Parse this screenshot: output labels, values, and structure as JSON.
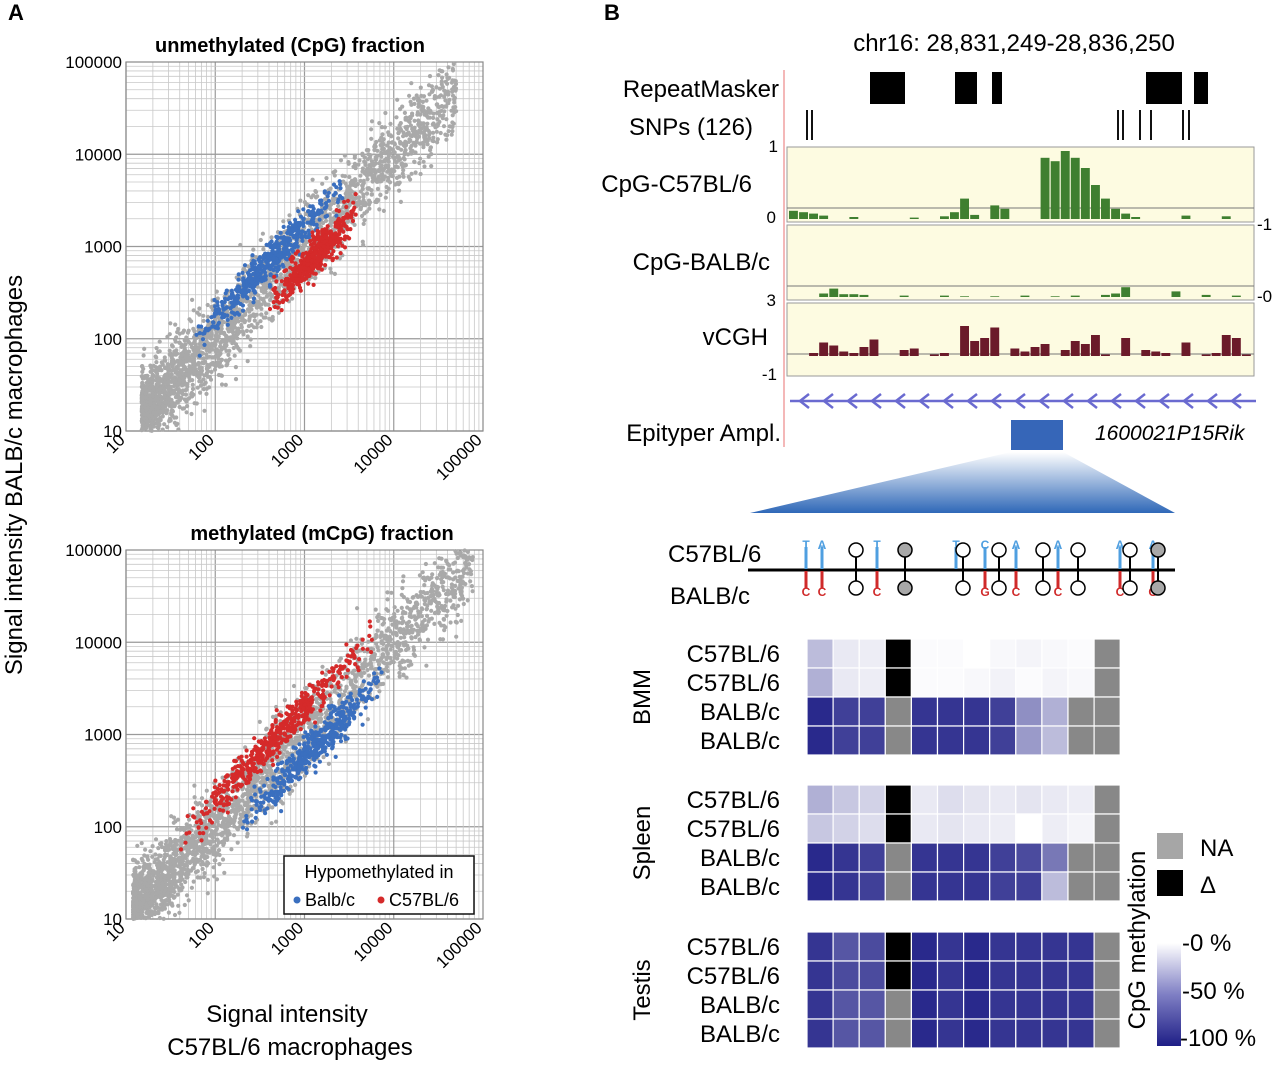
{
  "panel_a": {
    "letter": "A",
    "ylabel": "Signal intensity BALB/c macrophages",
    "xlabel_line1": "Signal intensity",
    "xlabel_line2": "C57BL/6 macrophages",
    "legend": {
      "title": "Hypomethylated in",
      "items": [
        {
          "label": "Balb/c",
          "color": "#3a6fbf"
        },
        {
          "label": "C57BL/6",
          "color": "#d52a2a"
        }
      ]
    },
    "colors": {
      "background": "#a9a9a9",
      "balbc": "#3a6fbf",
      "c57": "#d52a2a"
    }
  },
  "chart_data": [
    {
      "type": "scatter",
      "title": "unmethylated (CpG) fraction",
      "xscale": "log",
      "yscale": "log",
      "xlim": [
        10,
        100000
      ],
      "ylim": [
        10,
        100000
      ],
      "xticks": [
        "10",
        "100",
        "1000",
        "10000",
        "100000"
      ],
      "yticks": [
        "10",
        "100",
        "1000",
        "10000",
        "100000"
      ],
      "grid": true,
      "series": [
        {
          "name": "background",
          "color": "#a9a9a9",
          "center_offset": 0.0,
          "x_range": [
            15,
            50000
          ],
          "spread": 0.22
        },
        {
          "name": "Balb/c",
          "color": "#3a6fbf",
          "center_offset": 0.22,
          "x_range": [
            60,
            3000
          ],
          "spread": 0.1
        },
        {
          "name": "C57BL/6",
          "color": "#d52a2a",
          "center_offset": -0.22,
          "x_range": [
            400,
            4000
          ],
          "spread": 0.1
        }
      ]
    },
    {
      "type": "scatter",
      "title": "methylated (mCpG) fraction",
      "xscale": "log",
      "yscale": "log",
      "xlim": [
        10,
        100000
      ],
      "ylim": [
        10,
        100000
      ],
      "xticks": [
        "10",
        "100",
        "1000",
        "10000",
        "100000"
      ],
      "yticks": [
        "10",
        "100",
        "1000",
        "10000",
        "100000"
      ],
      "grid": true,
      "series": [
        {
          "name": "background",
          "color": "#a9a9a9",
          "center_offset": 0.0,
          "x_range": [
            12,
            80000
          ],
          "spread": 0.22
        },
        {
          "name": "Balb/c",
          "color": "#3a6fbf",
          "center_offset": -0.25,
          "x_range": [
            200,
            8000
          ],
          "spread": 0.1
        },
        {
          "name": "C57BL/6",
          "color": "#d52a2a",
          "center_offset": 0.28,
          "x_range": [
            40,
            6000
          ],
          "spread": 0.1
        }
      ]
    }
  ],
  "panel_b": {
    "letter": "B",
    "locus": "chr16: 28,831,249-28,836,250",
    "tracks": {
      "repeatmasker": "RepeatMasker",
      "snps": "SNPs (126)",
      "cpg_c57": "CpG-C57BL/6",
      "cpg_balbc": "CpG-BALB/c",
      "vcgh": "vCGH",
      "epityper": "Epityper Ampl.",
      "gene": "1600021P15Rik"
    },
    "axis_ticks": {
      "c57_top": "1",
      "c57_bottom": "0",
      "right_c57": "-1",
      "right_balbc": "-0",
      "balbc_top": "3",
      "vcgh_bottom": "-1"
    },
    "colors": {
      "track_bg": "#fdfbe1",
      "cpg_bar": "#3f7f30",
      "vcgh_bar": "#6b1a2a",
      "gene": "#6a6ad0",
      "amplicon": "#3666b8"
    },
    "cpg_c57_values": [
      0.12,
      0.1,
      0.08,
      0.05,
      0,
      0,
      0.03,
      0,
      0,
      0,
      0,
      0,
      0.02,
      0,
      0,
      0.04,
      0.1,
      0.3,
      0.06,
      0,
      0.2,
      0.15,
      0,
      0,
      0,
      0.9,
      0.85,
      1.0,
      0.9,
      0.75,
      0.5,
      0.3,
      0.15,
      0.08,
      0.03,
      0,
      0,
      0,
      0,
      0.05,
      0,
      0,
      0,
      0.04,
      0,
      0
    ],
    "cpg_balbc_values": [
      0,
      0,
      0,
      0.05,
      0.12,
      0.04,
      0.04,
      0.03,
      0,
      0,
      0,
      0.02,
      0,
      0,
      0,
      0.02,
      0,
      0.01,
      0,
      0,
      0.01,
      0,
      0,
      0.02,
      0,
      0,
      0.01,
      0,
      0.02,
      0,
      0,
      0.03,
      0.05,
      0.14,
      0,
      0,
      0,
      0,
      0.08,
      0,
      0,
      0.03,
      0,
      0,
      0.02,
      0
    ],
    "vcgh_values": [
      0,
      0,
      0.1,
      0.45,
      0.35,
      0.15,
      0.1,
      0.3,
      0.55,
      0,
      0,
      0.2,
      0.25,
      0,
      0.05,
      0.1,
      0,
      1.0,
      0.5,
      0.6,
      0.95,
      0,
      0.25,
      0.15,
      0.3,
      0.4,
      0,
      0.2,
      0.5,
      0.4,
      0.7,
      0.05,
      0,
      0.6,
      0,
      0.2,
      0.15,
      0.1,
      0,
      0.45,
      0,
      0.05,
      0.1,
      0.7,
      0.6,
      0.05
    ],
    "strain_top": "C57BL/6",
    "strain_bottom": "BALB/c",
    "snp_top": [
      "T",
      "A",
      "",
      "T",
      "",
      "T",
      "",
      "C",
      "",
      "A",
      "",
      "A",
      "",
      "A",
      "",
      "A",
      ""
    ],
    "snp_bottom": [
      "C",
      "C",
      "",
      "C",
      "",
      "",
      "",
      "G",
      "",
      "C",
      "",
      "C",
      "",
      "C",
      "",
      "G",
      ""
    ],
    "heatmap": {
      "groups": [
        {
          "name": "BMM",
          "rows": [
            {
              "label": "C57BL/6",
              "values": [
                0.3,
                0.1,
                0.08,
                "D",
                0.02,
                0.02,
                0.0,
                0.03,
                0.05,
                0.03,
                0.02,
                "NA"
              ]
            },
            {
              "label": "C57BL/6",
              "values": [
                0.35,
                0.1,
                0.08,
                "D",
                0.02,
                0.02,
                0.03,
                0.06,
                0.02,
                0.05,
                0.03,
                "NA"
              ]
            },
            {
              "label": "BALB/c",
              "values": [
                0.95,
                0.85,
                0.85,
                "NA",
                0.9,
                0.9,
                0.9,
                0.85,
                0.5,
                0.35,
                "NA",
                "NA"
              ]
            },
            {
              "label": "BALB/c",
              "values": [
                0.95,
                0.85,
                0.85,
                "NA",
                0.9,
                0.9,
                0.9,
                0.85,
                0.45,
                0.3,
                "NA",
                "NA"
              ]
            }
          ]
        },
        {
          "name": "Spleen",
          "rows": [
            {
              "label": "C57BL/6",
              "values": [
                0.35,
                0.25,
                0.2,
                "D",
                0.1,
                0.15,
                0.12,
                0.1,
                0.12,
                0.1,
                0.08,
                "NA"
              ]
            },
            {
              "label": "C57BL/6",
              "values": [
                0.25,
                0.2,
                0.15,
                "D",
                0.1,
                0.12,
                0.1,
                0.08,
                0.0,
                0.08,
                0.05,
                "NA"
              ]
            },
            {
              "label": "BALB/c",
              "values": [
                0.95,
                0.9,
                0.85,
                "NA",
                0.9,
                0.9,
                0.9,
                0.85,
                0.8,
                0.6,
                "NA",
                "NA"
              ]
            },
            {
              "label": "BALB/c",
              "values": [
                0.95,
                0.9,
                0.85,
                "NA",
                0.9,
                0.9,
                0.9,
                0.85,
                0.85,
                0.3,
                "NA",
                "NA"
              ]
            }
          ]
        },
        {
          "name": "Testis",
          "rows": [
            {
              "label": "C57BL/6",
              "values": [
                0.9,
                0.75,
                0.8,
                "D",
                0.95,
                0.9,
                0.95,
                0.9,
                0.9,
                0.9,
                0.9,
                "NA"
              ]
            },
            {
              "label": "C57BL/6",
              "values": [
                0.9,
                0.8,
                0.8,
                "D",
                0.95,
                0.9,
                0.95,
                0.9,
                0.9,
                0.9,
                0.9,
                "NA"
              ]
            },
            {
              "label": "BALB/c",
              "values": [
                0.9,
                0.75,
                0.75,
                "NA",
                0.95,
                0.9,
                0.95,
                0.9,
                0.9,
                0.9,
                0.9,
                "NA"
              ]
            },
            {
              "label": "BALB/c",
              "values": [
                0.9,
                0.75,
                0.75,
                "NA",
                0.95,
                0.9,
                0.95,
                0.9,
                0.9,
                0.9,
                0.9,
                "NA"
              ]
            }
          ]
        }
      ],
      "legend": {
        "na_label": "NA",
        "delta_label": "Δ",
        "scale_title": "CpG methylation",
        "scale_ticks": [
          "-0 %",
          "-50 %",
          "-100 %"
        ]
      },
      "colors": {
        "low": "#ffffff",
        "high": "#1e1e86",
        "na": "#888888",
        "delta": "#000000",
        "na_legend": "#a6a6a6"
      }
    }
  }
}
